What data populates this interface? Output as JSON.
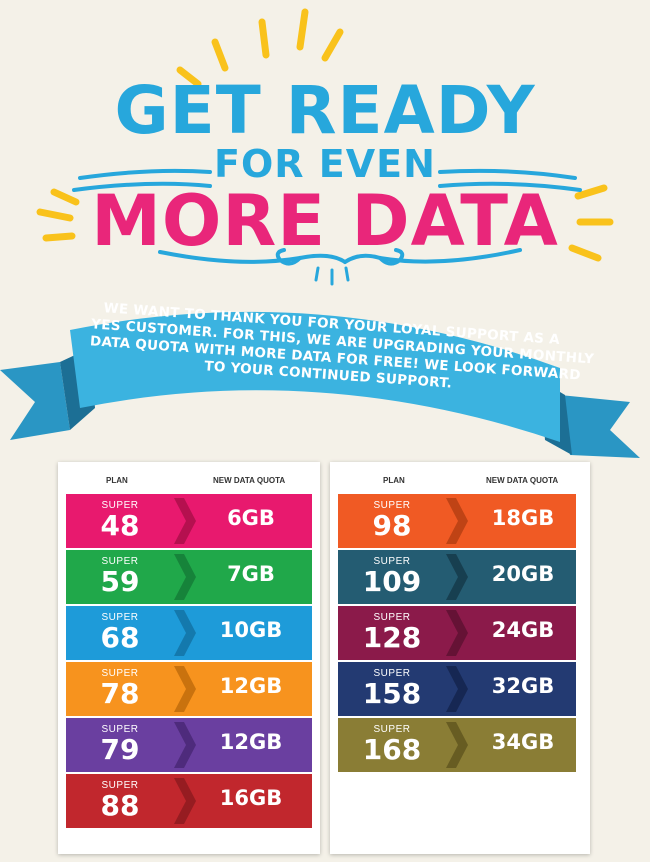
{
  "header": {
    "line1": "GET READY",
    "line2": "FOR EVEN",
    "line3": "MORE DATA"
  },
  "ribbon": {
    "lines": [
      "WE WANT TO THANK YOU FOR YOUR LOYAL SUPPORT AS A",
      "YES CUSTOMER. FOR THIS, WE ARE UPGRADING YOUR MONTHLY",
      "DATA QUOTA WITH MORE DATA FOR FREE! WE LOOK FORWARD",
      "TO YOUR CONTINUED SUPPORT."
    ]
  },
  "table_left": {
    "plan_header": "PLAN",
    "quota_header": "NEW DATA QUOTA",
    "rows": [
      {
        "super": "SUPER",
        "plan": "48",
        "quota": "6GB",
        "color": "#e8196e",
        "dark": "#b5104f"
      },
      {
        "super": "SUPER",
        "plan": "59",
        "quota": "7GB",
        "color": "#20a84a",
        "dark": "#16833a"
      },
      {
        "super": "SUPER",
        "plan": "68",
        "quota": "10GB",
        "color": "#1e9bd9",
        "dark": "#1479ad"
      },
      {
        "super": "SUPER",
        "plan": "78",
        "quota": "12GB",
        "color": "#f7931e",
        "dark": "#c9720e"
      },
      {
        "super": "SUPER",
        "plan": "79",
        "quota": "12GB",
        "color": "#6a3fa0",
        "dark": "#4e2b7c"
      },
      {
        "super": "SUPER",
        "plan": "88",
        "quota": "16GB",
        "color": "#c1272d",
        "dark": "#961c21"
      }
    ]
  },
  "table_right": {
    "plan_header": "PLAN",
    "quota_header": "NEW DATA QUOTA",
    "rows": [
      {
        "super": "SUPER",
        "plan": "98",
        "quota": "18GB",
        "color": "#f05a24",
        "dark": "#bf4315"
      },
      {
        "super": "SUPER",
        "plan": "109",
        "quota": "20GB",
        "color": "#245c72",
        "dark": "#173f50"
      },
      {
        "super": "SUPER",
        "plan": "128",
        "quota": "24GB",
        "color": "#8b1a4a",
        "dark": "#651235"
      },
      {
        "super": "SUPER",
        "plan": "158",
        "quota": "32GB",
        "color": "#233a72",
        "dark": "#162753"
      },
      {
        "super": "SUPER",
        "plan": "168",
        "quota": "34GB",
        "color": "#8a7d35",
        "dark": "#675c22"
      }
    ]
  },
  "colors": {
    "blue": "#27a7dc",
    "pink": "#e9267a",
    "yellow": "#f9c21b",
    "ribbon": "#3bb3e0",
    "background": "#f4f1e8"
  }
}
